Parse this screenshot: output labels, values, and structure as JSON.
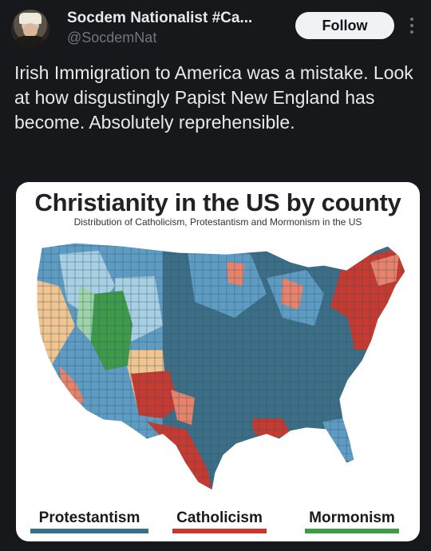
{
  "tweet": {
    "display_name": "Socdem Nationalist #Ca...",
    "handle": "@SocdemNat",
    "follow_label": "Follow",
    "text": "Irish Immigration to America was a mistake. Look at how disgustingly Papist New England has become. Absolutely reprehensible."
  },
  "card": {
    "title": "Christianity in the US by county",
    "subtitle": "Distribution of Catholicism, Protestantism and Mormonism in the US",
    "legend": [
      {
        "label": "Protestantism",
        "color": "#3a6f8a"
      },
      {
        "label": "Catholicism",
        "color": "#c8392f"
      },
      {
        "label": "Mormonism",
        "color": "#3f9a4a"
      }
    ]
  },
  "colors": {
    "background": "#16181c",
    "protestant": "#3c6e86",
    "protestant_light": "#5f9cc4",
    "protestant_pale": "#a9cfe3",
    "catholic": "#c8392f",
    "catholic_light": "#e8826a",
    "catholic_pale": "#f2c48f",
    "mormon": "#3f9a4a",
    "mormon_light": "#9fd3a8"
  },
  "icons": {
    "more": "more-vertical-icon",
    "avatar": "profile-avatar"
  }
}
